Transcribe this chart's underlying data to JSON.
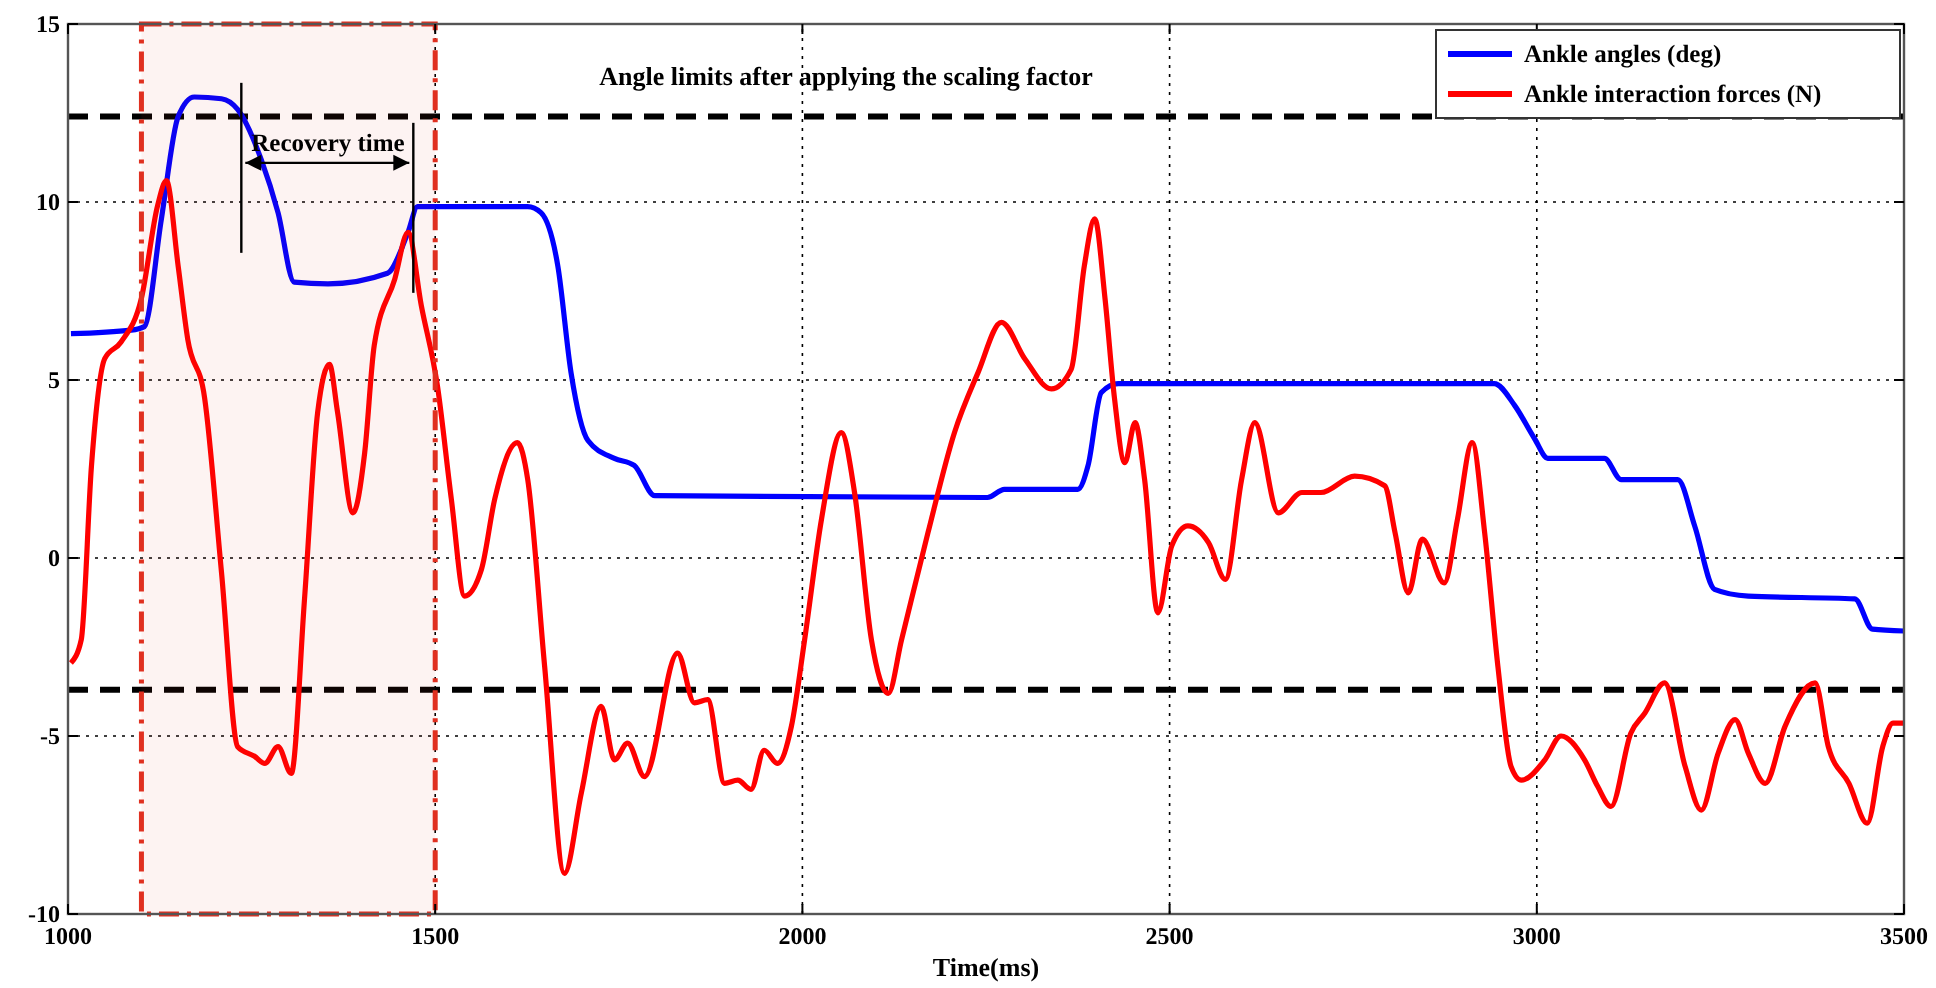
{
  "chart_data": {
    "type": "line",
    "xlabel": "Time(ms)",
    "xlim": [
      1000,
      3500
    ],
    "ylim": [
      -10,
      15
    ],
    "xticks": [
      1000,
      1500,
      2000,
      2500,
      3000,
      3500
    ],
    "yticks": [
      -10,
      -5,
      0,
      5,
      10,
      15
    ],
    "grid": true,
    "legend": "top right",
    "line_style": "solid",
    "marker": "none",
    "series": [
      {
        "name": "Ankle angles (deg)",
        "color": "#0000ff",
        "x": [
          1004,
          1086,
          1104,
          1127,
          1150,
          1172,
          1209,
          1231,
          1263,
          1286,
          1308,
          1354,
          1435,
          1463,
          1476,
          1626,
          1644,
          1667,
          1685,
          1708,
          1744,
          1771,
          1799,
          2252,
          2275,
          2375,
          2389,
          2407,
          2430,
          2942,
          2970,
          2997,
          3015,
          3092,
          3115,
          3192,
          3215,
          3242,
          3288,
          3433,
          3457,
          3500
        ],
        "values": [
          6.3,
          6.4,
          6.5,
          9.5,
          12.4,
          12.95,
          12.9,
          12.6,
          11.2,
          9.7,
          7.75,
          7.7,
          8.0,
          9.15,
          9.87,
          9.87,
          9.7,
          8.2,
          5.2,
          3.3,
          2.8,
          2.6,
          1.75,
          1.7,
          1.93,
          1.93,
          2.6,
          4.65,
          4.9,
          4.9,
          4.28,
          3.35,
          2.8,
          2.8,
          2.2,
          2.2,
          0.9,
          -0.88,
          -1.07,
          -1.15,
          -2.0,
          -2.05
        ]
      },
      {
        "name": "Ankle interaction forces (N)",
        "color": "#ff0000",
        "x": [
          1004,
          1018,
          1032,
          1050,
          1072,
          1100,
          1122,
          1134,
          1150,
          1163,
          1186,
          1209,
          1231,
          1254,
          1268,
          1286,
          1304,
          1322,
          1340,
          1356,
          1367,
          1388,
          1404,
          1417,
          1445,
          1463,
          1481,
          1503,
          1522,
          1540,
          1563,
          1581,
          1612,
          1626,
          1649,
          1676,
          1699,
          1726,
          1744,
          1762,
          1785,
          1830,
          1853,
          1871,
          1894,
          1912,
          1930,
          1948,
          1966,
          1985,
          2003,
          2026,
          2053,
          2071,
          2094,
          2117,
          2135,
          2171,
          2207,
          2239,
          2271,
          2303,
          2339,
          2366,
          2384,
          2398,
          2412,
          2425,
          2439,
          2453,
          2466,
          2484,
          2503,
          2525,
          2553,
          2576,
          2598,
          2616,
          2648,
          2680,
          2706,
          2752,
          2793,
          2807,
          2825,
          2844,
          2874,
          2892,
          2912,
          2929,
          2947,
          2965,
          2979,
          3011,
          3033,
          3065,
          3083,
          3101,
          3128,
          3147,
          3174,
          3202,
          3224,
          3247,
          3270,
          3288,
          3311,
          3338,
          3379,
          3397,
          3425,
          3450,
          3471,
          3485,
          3500
        ],
        "values": [
          -2.95,
          -2.3,
          2.6,
          5.6,
          6.06,
          7.3,
          9.9,
          10.6,
          8.2,
          6.15,
          4.5,
          -0.4,
          -5.3,
          -5.57,
          -5.77,
          -5.3,
          -6.05,
          -1.17,
          4.1,
          5.44,
          4.1,
          1.27,
          2.96,
          5.97,
          7.84,
          9.15,
          7.1,
          4.84,
          1.65,
          -1.07,
          -0.32,
          1.65,
          3.24,
          2.2,
          -3.04,
          -8.86,
          -6.6,
          -4.17,
          -5.67,
          -5.2,
          -6.14,
          -2.67,
          -4.07,
          -3.98,
          -6.33,
          -6.24,
          -6.5,
          -5.4,
          -5.77,
          -4.73,
          -2.3,
          1.09,
          3.52,
          1.84,
          -2.3,
          -3.8,
          -2.3,
          0.71,
          3.52,
          5.2,
          6.62,
          5.59,
          4.75,
          5.3,
          8.22,
          9.53,
          7.3,
          4.48,
          2.68,
          3.8,
          2.2,
          -1.54,
          0.34,
          0.9,
          0.43,
          -0.6,
          2.2,
          3.8,
          1.27,
          1.84,
          1.84,
          2.3,
          2.03,
          0.71,
          -0.98,
          0.53,
          -0.7,
          1.09,
          3.24,
          0.71,
          -3.04,
          -5.86,
          -6.24,
          -5.67,
          -5.0,
          -5.67,
          -6.42,
          -6.98,
          -4.92,
          -4.36,
          -3.51,
          -5.86,
          -7.08,
          -5.48,
          -4.54,
          -5.48,
          -6.33,
          -4.73,
          -3.51,
          -5.3,
          -6.33,
          -7.45,
          -5.3,
          -4.64,
          -4.64
        ]
      }
    ],
    "ref_lines": [
      {
        "axis": "y",
        "value": 12.4,
        "label": "Angle limits after applying the scaling factor",
        "color": "#000000",
        "line_style": "dashed"
      },
      {
        "axis": "y",
        "value": -3.7,
        "color": "#000000",
        "line_style": "dashed"
      }
    ],
    "bands": [
      {
        "axis": "x",
        "from": 1100,
        "to": 1500,
        "color": "#e03020"
      }
    ],
    "annotations": [
      {
        "text": "Recovery time",
        "x": 1236,
        "y": 11.1
      }
    ]
  }
}
